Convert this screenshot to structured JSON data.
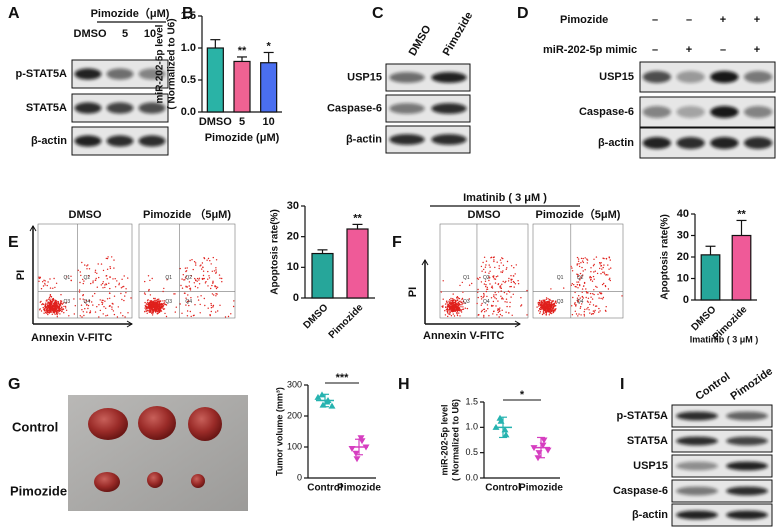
{
  "panels": {
    "A": {
      "label": "A",
      "title": "Pimozide（μM)",
      "lanes": [
        "DMSO",
        "5",
        "10"
      ],
      "rows": [
        "p-STAT5A",
        "STAT5A",
        "β-actin"
      ]
    },
    "B": {
      "label": "B",
      "type": "bar",
      "ylabel": [
        "miR-202-5p level",
        "( Normalized to U6)"
      ],
      "xlabel": "Pimozide (μM)",
      "categories": [
        "DMSO",
        "5",
        "10"
      ],
      "values": [
        1.0,
        0.79,
        0.77
      ],
      "errors": [
        0.13,
        0.07,
        0.16
      ],
      "colors": [
        "#2ab3a6",
        "#f06292",
        "#4a6ff0"
      ],
      "significance": [
        null,
        "**",
        "*"
      ],
      "ylim": [
        0,
        1.5
      ],
      "yticks": [
        {
          "value": 0,
          "label": "0.0"
        },
        {
          "value": 0.5,
          "label": "0.5"
        },
        {
          "value": 1,
          "label": "1.0"
        },
        {
          "value": 1.5,
          "label": "1.5"
        }
      ]
    },
    "C": {
      "label": "C",
      "lanes": [
        "DMSO",
        "Pimozide"
      ],
      "rows": [
        "USP15",
        "Caspase-6",
        "β-actin"
      ]
    },
    "D": {
      "label": "D",
      "conditions": [
        {
          "name": "Pimozide",
          "signs": [
            "–",
            "–",
            "+",
            "+"
          ]
        },
        {
          "name": "miR-202-5p mimic",
          "signs": [
            "–",
            "+",
            "–",
            "+"
          ]
        }
      ],
      "rows": [
        "USP15",
        "Caspase-6",
        "β-actin"
      ]
    },
    "E": {
      "label": "E",
      "plots": [
        "DMSO",
        "Pimozide （5μM)"
      ],
      "yaxis": "PI",
      "xaxis": "Annexin V-FITC",
      "quadrants": [
        "Q1",
        "Q2",
        "Q3",
        "Q4"
      ],
      "chart": {
        "type": "bar",
        "ylabel": [
          "Apoptosis rate(%)"
        ],
        "categories": [
          "DMSO",
          "Pimozide"
        ],
        "values": [
          14.5,
          22.5
        ],
        "errors": [
          1.2,
          1.5
        ],
        "colors": [
          "#26a69a",
          "#ef5a98"
        ],
        "significance": [
          null,
          "**"
        ],
        "ylim": [
          0,
          30
        ],
        "yticks": [
          0,
          10,
          20,
          30
        ]
      }
    },
    "F": {
      "label": "F",
      "title": "Imatinib ( 3 μM )",
      "plots": [
        "DMSO",
        "Pimozide（5μM)"
      ],
      "yaxis": "PI",
      "xaxis": "Annexin V-FITC",
      "quadrants": [
        "Q1",
        "Q2",
        "Q3",
        "Q4"
      ],
      "chart": {
        "type": "bar",
        "ylabel": [
          "Apoptosis rate(%)"
        ],
        "xlabel": "Imatinib ( 3 μM )",
        "categories": [
          "DMSO",
          "Pimozide"
        ],
        "values": [
          21,
          30
        ],
        "errors": [
          4,
          7
        ],
        "colors": [
          "#26a69a",
          "#ef5a98"
        ],
        "significance": [
          null,
          "**"
        ],
        "ylim": [
          0,
          40
        ],
        "yticks": [
          0,
          10,
          20,
          30,
          40
        ]
      }
    },
    "G": {
      "label": "G",
      "groups": [
        "Control",
        "Pimozide"
      ],
      "chart": {
        "type": "scatter",
        "ylabel": [
          "Tumor volume (mm³)"
        ],
        "categories": [
          "Control",
          "Pimozide"
        ],
        "points": [
          [
            260,
            235,
            250,
            268,
            245,
            232
          ],
          [
            95,
            62,
            120,
            80,
            130,
            100
          ]
        ],
        "means": [
          250,
          100
        ],
        "sd": [
          20,
          25
        ],
        "colors": [
          "#26b3b0",
          "#d63ec0"
        ],
        "significance": "***",
        "ylim": [
          0,
          300
        ],
        "yticks": [
          0,
          100,
          200,
          300
        ]
      }
    },
    "H": {
      "label": "H",
      "chart": {
        "type": "scatter",
        "ylabel": [
          "miR-202-5p level",
          "( Normalized to U6)"
        ],
        "categories": [
          "Control",
          "Pimozide"
        ],
        "points": [
          [
            1.0,
            1.12,
            0.85,
            1.18,
            0.95
          ],
          [
            0.6,
            0.5,
            0.75,
            0.4,
            0.65,
            0.55
          ]
        ],
        "means": [
          1.0,
          0.6
        ],
        "sd": [
          0.2,
          0.2
        ],
        "colors": [
          "#26b3b0",
          "#d63ec0"
        ],
        "significance": "*",
        "ylim": [
          0,
          1.5
        ],
        "yticks": [
          {
            "value": 0,
            "label": "0.0"
          },
          {
            "value": 0.5,
            "label": "0.5"
          },
          {
            "value": 1,
            "label": "1.0"
          },
          {
            "value": 1.5,
            "label": "1.5"
          }
        ]
      }
    },
    "I": {
      "label": "I",
      "lanes": [
        "Control",
        "Pimozide"
      ],
      "rows": [
        "p-STAT5A",
        "STAT5A",
        "USP15",
        "Caspase-6",
        "β-actin"
      ]
    }
  }
}
